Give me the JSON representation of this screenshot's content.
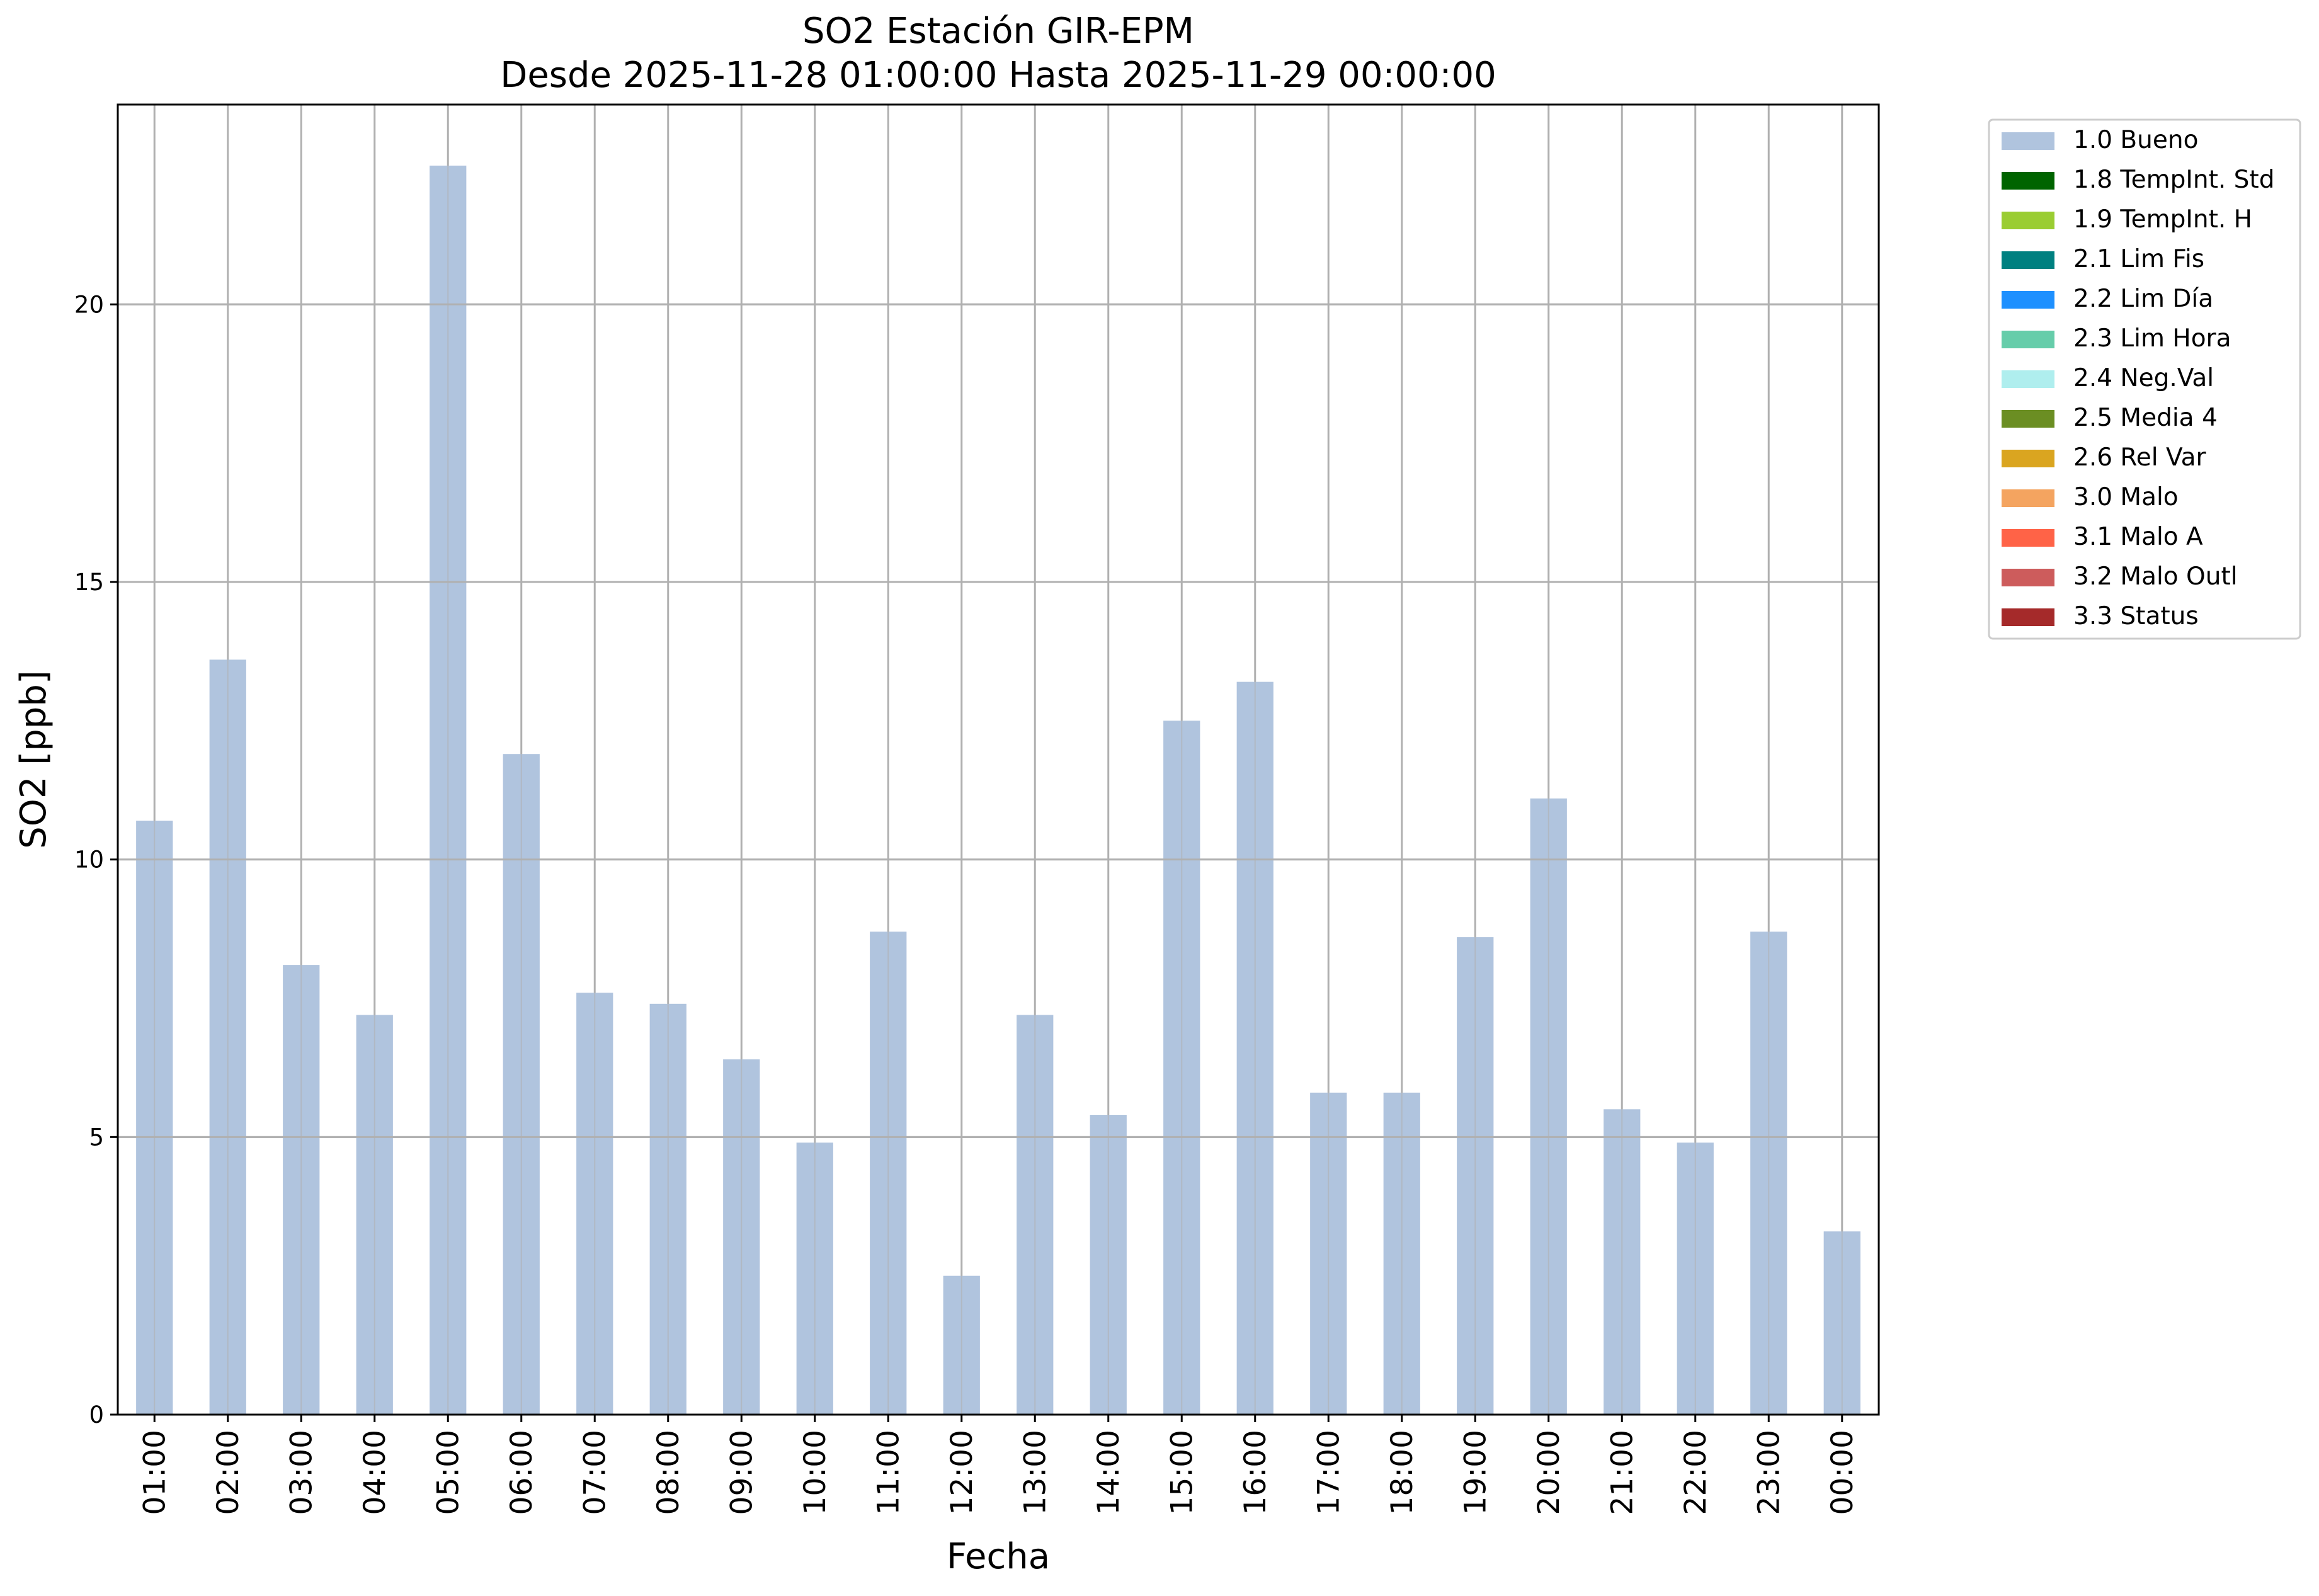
{
  "chart_data": {
    "type": "bar",
    "title": "SO2 Estación GIR-EPM",
    "subtitle": "Desde 2025-11-28 01:00:00 Hasta 2025-11-29 00:00:00",
    "xlabel": "Fecha",
    "ylabel": "SO2 [ppb]",
    "ylim": [
      0,
      23.6
    ],
    "yticks": [
      0,
      5,
      10,
      15,
      20
    ],
    "grid": true,
    "legend_position": "outside-top-right",
    "categories": [
      "01:00",
      "02:00",
      "03:00",
      "04:00",
      "05:00",
      "06:00",
      "07:00",
      "08:00",
      "09:00",
      "10:00",
      "11:00",
      "12:00",
      "13:00",
      "14:00",
      "15:00",
      "16:00",
      "17:00",
      "18:00",
      "19:00",
      "20:00",
      "21:00",
      "22:00",
      "23:00",
      "00:00"
    ],
    "series": [
      {
        "name": "1.0 Bueno",
        "color": "#b0c4de",
        "values": [
          10.7,
          13.6,
          8.1,
          7.2,
          22.5,
          11.9,
          7.6,
          7.4,
          6.4,
          4.9,
          8.7,
          2.5,
          7.2,
          5.4,
          12.5,
          13.2,
          5.8,
          5.8,
          8.6,
          11.1,
          5.5,
          4.9,
          8.7,
          3.3
        ]
      }
    ],
    "legend": [
      {
        "label": "1.0 Bueno",
        "color": "#b0c4de"
      },
      {
        "label": "1.8 TempInt. Std",
        "color": "#006400"
      },
      {
        "label": "1.9 TempInt. H",
        "color": "#9acd32"
      },
      {
        "label": "2.1 Lim Fis",
        "color": "#008080"
      },
      {
        "label": "2.2 Lim Día",
        "color": "#1e90ff"
      },
      {
        "label": "2.3 Lim Hora",
        "color": "#66cdaa"
      },
      {
        "label": "2.4 Neg.Val",
        "color": "#afeeee"
      },
      {
        "label": "2.5 Media 4",
        "color": "#6b8e23"
      },
      {
        "label": "2.6 Rel Var",
        "color": "#daa520"
      },
      {
        "label": "3.0 Malo",
        "color": "#f4a460"
      },
      {
        "label": "3.1 Malo A",
        "color": "#ff6347"
      },
      {
        "label": "3.2 Malo Outl",
        "color": "#cd5c5c"
      },
      {
        "label": "3.3 Status",
        "color": "#a52a2a"
      }
    ]
  }
}
